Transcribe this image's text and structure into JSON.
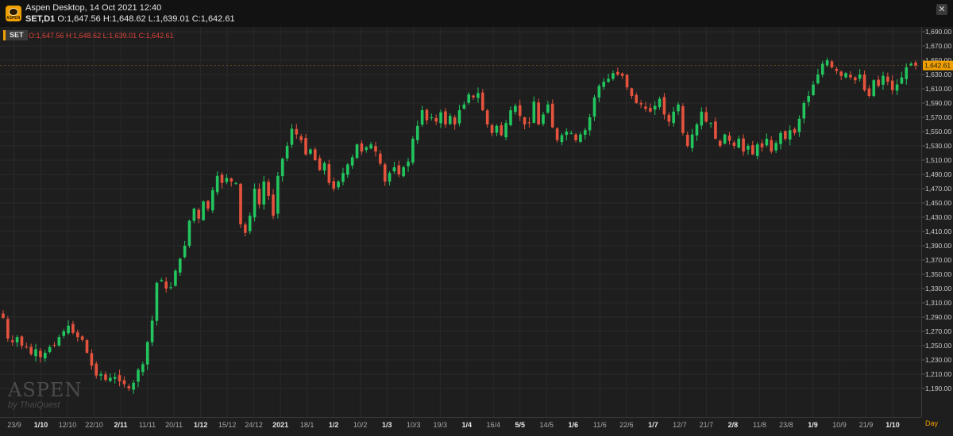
{
  "header": {
    "app_title": "Aspen Desktop, 14 Oct 2021 12:40",
    "instrument": "SET,D1",
    "ohlc": "O:1,647.56 H:1,648.62 L:1,639.01 C:1,642.61",
    "logo_text": "ASPEN"
  },
  "legend": {
    "symbol": "SET",
    "ohlc": "O:1,647.56 H:1,648.62 L:1,639.01 C:1,642.61"
  },
  "watermark": {
    "brand": "ASPEN",
    "sub": "by ThaiQuest"
  },
  "period_label": "Day",
  "colors": {
    "up": "#22c55e",
    "down": "#e5533d",
    "background": "#1e1e1e",
    "last_price": "#f0a000"
  },
  "chart_data": {
    "type": "candlestick",
    "series": [
      {
        "name": "SET",
        "timeframe": "D1"
      }
    ],
    "ylim": [
      1170,
      1690
    ],
    "y_ticks": [
      1690,
      1670,
      1650,
      1630,
      1610,
      1590,
      1570,
      1550,
      1530,
      1510,
      1490,
      1470,
      1450,
      1430,
      1410,
      1390,
      1370,
      1350,
      1330,
      1310,
      1290,
      1270,
      1250,
      1230,
      1210,
      1190
    ],
    "y_tick_labels": [
      "1,690.00",
      "1,670.00",
      "1,650.00",
      "1,630.00",
      "1,610.00",
      "1,590.00",
      "1,570.00",
      "1,550.00",
      "1,530.00",
      "1,510.00",
      "1,490.00",
      "1,470.00",
      "1,450.00",
      "1,430.00",
      "1,410.00",
      "1,390.00",
      "1,370.00",
      "1,350.00",
      "1,330.00",
      "1,310.00",
      "1,290.00",
      "1,270.00",
      "1,250.00",
      "1,230.00",
      "1,210.00",
      "1,190.00"
    ],
    "last_price_label": "1,642.61",
    "last_price": 1642.61,
    "x_ticks": [
      {
        "label": "23/9",
        "bold": false
      },
      {
        "label": "1/10",
        "bold": true
      },
      {
        "label": "12/10",
        "bold": false
      },
      {
        "label": "22/10",
        "bold": false
      },
      {
        "label": "2/11",
        "bold": true
      },
      {
        "label": "11/11",
        "bold": false
      },
      {
        "label": "20/11",
        "bold": false
      },
      {
        "label": "1/12",
        "bold": true
      },
      {
        "label": "15/12",
        "bold": false
      },
      {
        "label": "24/12",
        "bold": false
      },
      {
        "label": "2021",
        "bold": true
      },
      {
        "label": "18/1",
        "bold": false
      },
      {
        "label": "1/2",
        "bold": true
      },
      {
        "label": "10/2",
        "bold": false
      },
      {
        "label": "1/3",
        "bold": true
      },
      {
        "label": "10/3",
        "bold": false
      },
      {
        "label": "19/3",
        "bold": false
      },
      {
        "label": "1/4",
        "bold": true
      },
      {
        "label": "16/4",
        "bold": false
      },
      {
        "label": "5/5",
        "bold": true
      },
      {
        "label": "14/5",
        "bold": false
      },
      {
        "label": "1/6",
        "bold": true
      },
      {
        "label": "11/6",
        "bold": false
      },
      {
        "label": "22/6",
        "bold": false
      },
      {
        "label": "1/7",
        "bold": true
      },
      {
        "label": "12/7",
        "bold": false
      },
      {
        "label": "21/7",
        "bold": false
      },
      {
        "label": "2/8",
        "bold": true
      },
      {
        "label": "11/8",
        "bold": false
      },
      {
        "label": "23/8",
        "bold": false
      },
      {
        "label": "1/9",
        "bold": true
      },
      {
        "label": "10/9",
        "bold": false
      },
      {
        "label": "21/9",
        "bold": false
      },
      {
        "label": "1/10",
        "bold": true
      }
    ],
    "closes": [
      1289,
      1260,
      1255,
      1262,
      1250,
      1248,
      1238,
      1245,
      1234,
      1240,
      1248,
      1250,
      1262,
      1270,
      1278,
      1268,
      1262,
      1258,
      1240,
      1222,
      1208,
      1210,
      1202,
      1205,
      1206,
      1200,
      1196,
      1190,
      1198,
      1216,
      1224,
      1255,
      1285,
      1338,
      1342,
      1330,
      1332,
      1355,
      1372,
      1390,
      1425,
      1442,
      1428,
      1452,
      1442,
      1468,
      1488,
      1478,
      1485,
      1480,
      1478,
      1420,
      1408,
      1432,
      1470,
      1448,
      1480,
      1460,
      1432,
      1488,
      1512,
      1530,
      1554,
      1546,
      1538,
      1518,
      1525,
      1510,
      1496,
      1506,
      1478,
      1470,
      1480,
      1492,
      1504,
      1514,
      1532,
      1522,
      1528,
      1532,
      1522,
      1505,
      1480,
      1492,
      1500,
      1490,
      1500,
      1508,
      1540,
      1558,
      1580,
      1566,
      1570,
      1564,
      1577,
      1560,
      1572,
      1560,
      1580,
      1588,
      1602,
      1598,
      1604,
      1580,
      1560,
      1548,
      1558,
      1545,
      1562,
      1580,
      1586,
      1572,
      1560,
      1562,
      1592,
      1560,
      1574,
      1588,
      1556,
      1538,
      1545,
      1550,
      1548,
      1538,
      1546,
      1552,
      1570,
      1598,
      1614,
      1620,
      1624,
      1632,
      1630,
      1628,
      1612,
      1600,
      1590,
      1588,
      1582,
      1578,
      1586,
      1596,
      1574,
      1564,
      1578,
      1588,
      1548,
      1530,
      1546,
      1560,
      1578,
      1564,
      1562,
      1540,
      1530,
      1546,
      1537,
      1530,
      1540,
      1522,
      1530,
      1518,
      1532,
      1528,
      1540,
      1522,
      1534,
      1548,
      1540,
      1552,
      1548,
      1568,
      1590,
      1600,
      1616,
      1630,
      1645,
      1650,
      1640,
      1635,
      1628,
      1632,
      1626,
      1622,
      1630,
      1608,
      1600,
      1622,
      1614,
      1628,
      1620,
      1608,
      1616,
      1626,
      1640,
      1645,
      1642.61
    ]
  }
}
